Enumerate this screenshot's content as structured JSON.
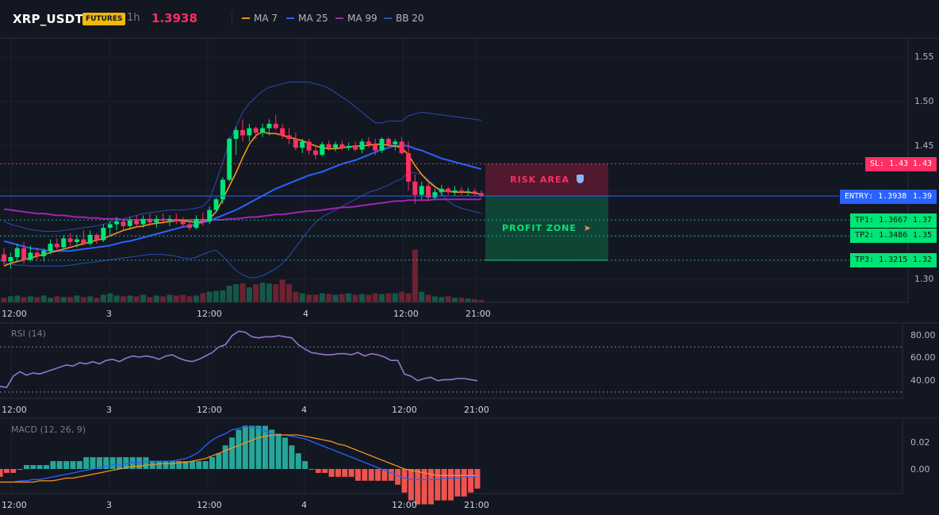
{
  "header": {
    "symbol": "XRP_USDT",
    "badge": "FUTURES",
    "timeframe": "1h",
    "last_price": "1.3938",
    "indicators": [
      {
        "label": "MA 7",
        "color": "#f7931a"
      },
      {
        "label": "MA 25",
        "color": "#2962ff"
      },
      {
        "label": "MA 99",
        "color": "#9c27b0"
      },
      {
        "label": "BB 20",
        "color": "#2b4bb3"
      }
    ]
  },
  "price_axis": {
    "ticks": [
      "1.55",
      "1.50",
      "1.45",
      "1.40",
      "1.30"
    ]
  },
  "time_axis": {
    "ticks": [
      "12:00",
      "3",
      "12:00",
      "4",
      "12:00",
      "21:00"
    ]
  },
  "zones": {
    "risk_label": "RISK AREA",
    "risk_icon": "shield-icon",
    "profit_label": "PROFIT ZONE",
    "profit_icon": "rocket-icon"
  },
  "levels": {
    "sl": {
      "label": "SL: 1.43",
      "value": "1.43",
      "color": "#f23645"
    },
    "entry": {
      "label": "ENTRY: 1.3938",
      "value": "1.39",
      "color": "#2962ff"
    },
    "tp1": {
      "label": "TP1: 1.3667",
      "value": "1.37",
      "color": "#00e676"
    },
    "tp2": {
      "label": "TP2: 1.3486",
      "value": "1.35",
      "color": "#00e676"
    },
    "tp3": {
      "label": "TP3: 1.3215",
      "value": "1.32",
      "color": "#00e676"
    }
  },
  "rsi": {
    "title": "RSI (14)",
    "ticks": [
      "80.00",
      "60.00",
      "40.00"
    ],
    "values": [
      35,
      34,
      44,
      48,
      45,
      47,
      46,
      48,
      50,
      52,
      54,
      53,
      56,
      55,
      57,
      55,
      58,
      59,
      57,
      60,
      62,
      61,
      62,
      61,
      59,
      62,
      63,
      60,
      58,
      57,
      59,
      62,
      65,
      70,
      72,
      80,
      84,
      83,
      79,
      78,
      79,
      79,
      80,
      79,
      78,
      72,
      68,
      65,
      64,
      63,
      63,
      64,
      64,
      63,
      65,
      62,
      64,
      63,
      61,
      58,
      58,
      46,
      44,
      40,
      42,
      43,
      40,
      41,
      41,
      42,
      42,
      41,
      40
    ]
  },
  "macd": {
    "title": "MACD (12, 26, 9)",
    "ticks": [
      "0.02",
      "0.00"
    ],
    "hist": [
      -0.002,
      -0.001,
      -0.001,
      0.0,
      0.001,
      0.001,
      0.001,
      0.001,
      0.002,
      0.002,
      0.002,
      0.002,
      0.002,
      0.003,
      0.003,
      0.003,
      0.003,
      0.003,
      0.003,
      0.003,
      0.003,
      0.003,
      0.003,
      0.002,
      0.002,
      0.002,
      0.002,
      0.002,
      0.002,
      0.002,
      0.002,
      0.002,
      0.003,
      0.004,
      0.006,
      0.008,
      0.01,
      0.011,
      0.011,
      0.011,
      0.011,
      0.01,
      0.009,
      0.008,
      0.006,
      0.004,
      0.002,
      0.0,
      -0.001,
      -0.001,
      -0.002,
      -0.002,
      -0.002,
      -0.002,
      -0.003,
      -0.003,
      -0.003,
      -0.003,
      -0.003,
      -0.003,
      -0.004,
      -0.006,
      -0.008,
      -0.009,
      -0.009,
      -0.009,
      -0.008,
      -0.008,
      -0.008,
      -0.007,
      -0.007,
      -0.006,
      -0.005
    ],
    "macd_line": [
      -0.01,
      -0.01,
      -0.01,
      -0.009,
      -0.009,
      -0.008,
      -0.008,
      -0.007,
      -0.006,
      -0.005,
      -0.004,
      -0.003,
      -0.002,
      -0.001,
      0.0,
      0.001,
      0.002,
      0.003,
      0.003,
      0.004,
      0.005,
      0.005,
      0.006,
      0.006,
      0.006,
      0.006,
      0.006,
      0.007,
      0.008,
      0.01,
      0.013,
      0.018,
      0.022,
      0.025,
      0.027,
      0.03,
      0.031,
      0.032,
      0.032,
      0.031,
      0.029,
      0.027,
      0.026,
      0.026,
      0.025,
      0.024,
      0.023,
      0.021,
      0.019,
      0.017,
      0.015,
      0.013,
      0.011,
      0.009,
      0.007,
      0.005,
      0.003,
      0.001,
      -0.001,
      -0.003,
      -0.005,
      -0.007,
      -0.008,
      -0.008,
      -0.008,
      -0.008,
      -0.008,
      -0.007,
      -0.007,
      -0.007,
      -0.006,
      -0.006,
      -0.006
    ],
    "signal_line": [
      -0.01,
      -0.01,
      -0.01,
      -0.01,
      -0.01,
      -0.01,
      -0.009,
      -0.009,
      -0.009,
      -0.008,
      -0.007,
      -0.007,
      -0.006,
      -0.005,
      -0.004,
      -0.003,
      -0.002,
      -0.001,
      0.0,
      0.001,
      0.002,
      0.002,
      0.003,
      0.003,
      0.004,
      0.004,
      0.004,
      0.005,
      0.005,
      0.006,
      0.007,
      0.008,
      0.01,
      0.012,
      0.014,
      0.016,
      0.018,
      0.02,
      0.022,
      0.024,
      0.025,
      0.026,
      0.026,
      0.026,
      0.026,
      0.026,
      0.025,
      0.024,
      0.023,
      0.022,
      0.021,
      0.019,
      0.018,
      0.016,
      0.014,
      0.012,
      0.01,
      0.008,
      0.006,
      0.004,
      0.002,
      0.0,
      -0.001,
      -0.002,
      -0.003,
      -0.004,
      -0.005,
      -0.005,
      -0.005,
      -0.005,
      -0.005,
      -0.005,
      -0.005
    ]
  },
  "chart_data": {
    "type": "candlestick",
    "candles": [
      [
        1.328,
        1.335,
        1.315,
        1.32
      ],
      [
        1.32,
        1.33,
        1.312,
        1.325
      ],
      [
        1.325,
        1.34,
        1.32,
        1.335
      ],
      [
        1.335,
        1.342,
        1.318,
        1.322
      ],
      [
        1.322,
        1.338,
        1.32,
        1.33
      ],
      [
        1.33,
        1.336,
        1.322,
        1.326
      ],
      [
        1.326,
        1.335,
        1.32,
        1.332
      ],
      [
        1.332,
        1.345,
        1.328,
        1.34
      ],
      [
        1.34,
        1.346,
        1.332,
        1.336
      ],
      [
        1.336,
        1.35,
        1.334,
        1.346
      ],
      [
        1.346,
        1.352,
        1.338,
        1.342
      ],
      [
        1.342,
        1.35,
        1.336,
        1.345
      ],
      [
        1.345,
        1.355,
        1.338,
        1.34
      ],
      [
        1.34,
        1.355,
        1.338,
        1.35
      ],
      [
        1.35,
        1.352,
        1.34,
        1.344
      ],
      [
        1.344,
        1.362,
        1.342,
        1.358
      ],
      [
        1.358,
        1.366,
        1.35,
        1.362
      ],
      [
        1.362,
        1.37,
        1.355,
        1.365
      ],
      [
        1.365,
        1.368,
        1.356,
        1.36
      ],
      [
        1.36,
        1.37,
        1.356,
        1.366
      ],
      [
        1.366,
        1.372,
        1.358,
        1.362
      ],
      [
        1.362,
        1.372,
        1.358,
        1.368
      ],
      [
        1.368,
        1.374,
        1.36,
        1.364
      ],
      [
        1.364,
        1.372,
        1.358,
        1.368
      ],
      [
        1.368,
        1.374,
        1.362,
        1.366
      ],
      [
        1.366,
        1.372,
        1.36,
        1.368
      ],
      [
        1.368,
        1.374,
        1.362,
        1.365
      ],
      [
        1.365,
        1.37,
        1.358,
        1.362
      ],
      [
        1.362,
        1.368,
        1.355,
        1.358
      ],
      [
        1.358,
        1.372,
        1.356,
        1.368
      ],
      [
        1.368,
        1.375,
        1.36,
        1.365
      ],
      [
        1.365,
        1.382,
        1.362,
        1.378
      ],
      [
        1.378,
        1.392,
        1.375,
        1.39
      ],
      [
        1.39,
        1.415,
        1.385,
        1.412
      ],
      [
        1.412,
        1.46,
        1.41,
        1.458
      ],
      [
        1.458,
        1.472,
        1.44,
        1.468
      ],
      [
        1.468,
        1.48,
        1.455,
        1.462
      ],
      [
        1.462,
        1.475,
        1.455,
        1.47
      ],
      [
        1.47,
        1.472,
        1.458,
        1.465
      ],
      [
        1.465,
        1.475,
        1.46,
        1.47
      ],
      [
        1.47,
        1.48,
        1.462,
        1.475
      ],
      [
        1.475,
        1.485,
        1.468,
        1.47
      ],
      [
        1.47,
        1.475,
        1.458,
        1.462
      ],
      [
        1.462,
        1.47,
        1.452,
        1.458
      ],
      [
        1.458,
        1.465,
        1.445,
        1.448
      ],
      [
        1.448,
        1.458,
        1.442,
        1.455
      ],
      [
        1.455,
        1.458,
        1.44,
        1.445
      ],
      [
        1.445,
        1.452,
        1.435,
        1.44
      ],
      [
        1.44,
        1.455,
        1.438,
        1.452
      ],
      [
        1.452,
        1.456,
        1.445,
        1.448
      ],
      [
        1.448,
        1.455,
        1.444,
        1.452
      ],
      [
        1.452,
        1.456,
        1.445,
        1.448
      ],
      [
        1.448,
        1.454,
        1.445,
        1.45
      ],
      [
        1.45,
        1.455,
        1.444,
        1.446
      ],
      [
        1.446,
        1.458,
        1.442,
        1.455
      ],
      [
        1.455,
        1.46,
        1.448,
        1.452
      ],
      [
        1.452,
        1.458,
        1.44,
        1.445
      ],
      [
        1.445,
        1.46,
        1.442,
        1.458
      ],
      [
        1.458,
        1.46,
        1.448,
        1.452
      ],
      [
        1.452,
        1.458,
        1.445,
        1.455
      ],
      [
        1.455,
        1.46,
        1.44,
        1.442
      ],
      [
        1.442,
        1.455,
        1.4,
        1.41
      ],
      [
        1.41,
        1.418,
        1.385,
        1.395
      ],
      [
        1.395,
        1.41,
        1.39,
        1.405
      ],
      [
        1.405,
        1.408,
        1.388,
        1.392
      ],
      [
        1.392,
        1.402,
        1.39,
        1.398
      ],
      [
        1.398,
        1.406,
        1.394,
        1.402
      ],
      [
        1.402,
        1.404,
        1.395,
        1.398
      ],
      [
        1.398,
        1.405,
        1.394,
        1.4
      ],
      [
        1.4,
        1.404,
        1.395,
        1.398
      ],
      [
        1.398,
        1.403,
        1.394,
        1.399
      ],
      [
        1.399,
        1.402,
        1.394,
        1.397
      ],
      [
        1.397,
        1.4,
        1.392,
        1.394
      ]
    ],
    "volume": [
      6,
      8,
      9,
      7,
      8,
      7,
      9,
      6,
      8,
      7,
      7,
      9,
      7,
      8,
      6,
      10,
      12,
      9,
      8,
      9,
      8,
      10,
      7,
      9,
      8,
      10,
      9,
      10,
      8,
      9,
      12,
      14,
      15,
      16,
      22,
      24,
      25,
      20,
      24,
      26,
      25,
      24,
      30,
      24,
      14,
      12,
      10,
      10,
      12,
      11,
      10,
      11,
      12,
      10,
      11,
      10,
      12,
      11,
      12,
      12,
      14,
      12,
      70,
      14,
      10,
      8,
      7,
      8,
      6,
      6,
      5,
      4,
      3
    ],
    "ma7": [
      1.315,
      1.318,
      1.32,
      1.322,
      1.324,
      1.326,
      1.328,
      1.33,
      1.332,
      1.334,
      1.336,
      1.338,
      1.34,
      1.342,
      1.344,
      1.346,
      1.349,
      1.352,
      1.355,
      1.357,
      1.359,
      1.36,
      1.362,
      1.363,
      1.364,
      1.365,
      1.366,
      1.366,
      1.365,
      1.364,
      1.365,
      1.368,
      1.376,
      1.39,
      1.405,
      1.42,
      1.437,
      1.452,
      1.462,
      1.466,
      1.464,
      1.464,
      1.462,
      1.46,
      1.458,
      1.456,
      1.453,
      1.45,
      1.448,
      1.447,
      1.447,
      1.448,
      1.449,
      1.45,
      1.45,
      1.451,
      1.452,
      1.452,
      1.451,
      1.45,
      1.448,
      1.44,
      1.428,
      1.418,
      1.41,
      1.404,
      1.4,
      1.399,
      1.398,
      1.398,
      1.398,
      1.397,
      1.396
    ],
    "ma25": [
      1.343,
      1.341,
      1.339,
      1.337,
      1.335,
      1.334,
      1.333,
      1.332,
      1.332,
      1.332,
      1.332,
      1.333,
      1.334,
      1.335,
      1.336,
      1.337,
      1.338,
      1.34,
      1.342,
      1.343,
      1.345,
      1.347,
      1.349,
      1.351,
      1.353,
      1.355,
      1.357,
      1.359,
      1.36,
      1.362,
      1.364,
      1.366,
      1.369,
      1.372,
      1.375,
      1.378,
      1.382,
      1.386,
      1.39,
      1.394,
      1.398,
      1.402,
      1.405,
      1.408,
      1.411,
      1.414,
      1.417,
      1.419,
      1.421,
      1.424,
      1.427,
      1.43,
      1.432,
      1.434,
      1.437,
      1.44,
      1.443,
      1.446,
      1.448,
      1.45,
      1.451,
      1.45,
      1.447,
      1.445,
      1.442,
      1.439,
      1.436,
      1.434,
      1.432,
      1.43,
      1.428,
      1.426,
      1.424
    ],
    "ma99": [
      1.379,
      1.378,
      1.377,
      1.376,
      1.375,
      1.374,
      1.374,
      1.373,
      1.372,
      1.372,
      1.371,
      1.37,
      1.37,
      1.369,
      1.369,
      1.368,
      1.368,
      1.368,
      1.367,
      1.367,
      1.367,
      1.367,
      1.367,
      1.367,
      1.367,
      1.367,
      1.367,
      1.367,
      1.367,
      1.367,
      1.367,
      1.367,
      1.367,
      1.367,
      1.368,
      1.368,
      1.369,
      1.37,
      1.37,
      1.371,
      1.372,
      1.373,
      1.373,
      1.374,
      1.375,
      1.376,
      1.377,
      1.377,
      1.378,
      1.379,
      1.38,
      1.381,
      1.381,
      1.382,
      1.383,
      1.384,
      1.385,
      1.386,
      1.387,
      1.388,
      1.388,
      1.389,
      1.389,
      1.389,
      1.389,
      1.39,
      1.39,
      1.39,
      1.39,
      1.39,
      1.39,
      1.39,
      1.39
    ],
    "bb_upper": [
      1.365,
      1.362,
      1.36,
      1.358,
      1.356,
      1.355,
      1.354,
      1.354,
      1.354,
      1.355,
      1.356,
      1.357,
      1.358,
      1.359,
      1.36,
      1.362,
      1.364,
      1.366,
      1.368,
      1.37,
      1.372,
      1.374,
      1.375,
      1.376,
      1.377,
      1.378,
      1.378,
      1.378,
      1.379,
      1.38,
      1.382,
      1.39,
      1.41,
      1.432,
      1.455,
      1.472,
      1.488,
      1.498,
      1.505,
      1.512,
      1.516,
      1.518,
      1.52,
      1.522,
      1.522,
      1.522,
      1.522,
      1.52,
      1.518,
      1.515,
      1.51,
      1.505,
      1.5,
      1.494,
      1.488,
      1.482,
      1.476,
      1.476,
      1.478,
      1.478,
      1.478,
      1.484,
      1.486,
      1.488,
      1.487,
      1.486,
      1.485,
      1.484,
      1.483,
      1.482,
      1.481,
      1.48,
      1.479
    ],
    "bb_lower": [
      1.318,
      1.317,
      1.316,
      1.316,
      1.315,
      1.315,
      1.315,
      1.315,
      1.315,
      1.315,
      1.316,
      1.317,
      1.318,
      1.319,
      1.32,
      1.321,
      1.322,
      1.323,
      1.324,
      1.325,
      1.326,
      1.327,
      1.328,
      1.328,
      1.328,
      1.327,
      1.326,
      1.324,
      1.323,
      1.325,
      1.328,
      1.331,
      1.333,
      1.326,
      1.318,
      1.31,
      1.305,
      1.302,
      1.302,
      1.304,
      1.308,
      1.312,
      1.318,
      1.326,
      1.336,
      1.346,
      1.356,
      1.364,
      1.37,
      1.374,
      1.378,
      1.382,
      1.386,
      1.39,
      1.394,
      1.398,
      1.4,
      1.403,
      1.406,
      1.41,
      1.413,
      1.42,
      1.42,
      1.418,
      1.412,
      1.405,
      1.396,
      1.388,
      1.383,
      1.38,
      1.378,
      1.376,
      1.374
    ],
    "ylim": [
      1.28,
      1.57
    ]
  }
}
